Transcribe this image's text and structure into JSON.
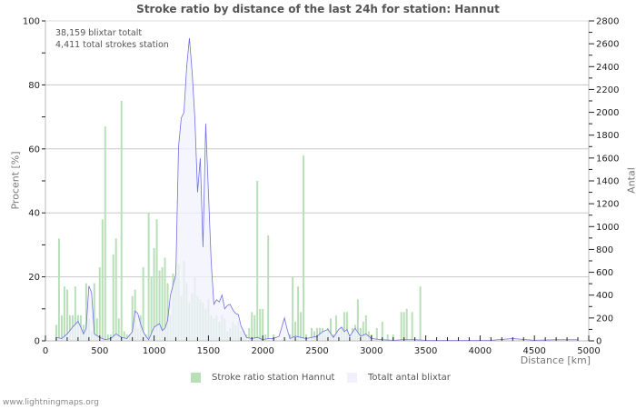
{
  "title": "Stroke ratio by distance of the last 24h for station: Hannut",
  "annotation": {
    "line1": "38,159 blixtar totalt",
    "line2": "4,411 total strokes station"
  },
  "axes": {
    "left_label": "Procent   [%]",
    "right_label": "Antal",
    "x_label": "Distance   [km]"
  },
  "legend": {
    "ratio_label": "Stroke ratio station Hannut",
    "total_label": "Totalt antal blixtar"
  },
  "footer": "www.lightningmaps.org",
  "colors": {
    "bar": "#b8e0b8",
    "line": "#6f6fe6",
    "fill": "#f1f1fd",
    "grid": "#c8c8c8"
  },
  "chart_data": {
    "type": "bar",
    "title": "Stroke ratio by distance of the last 24h for station: Hannut",
    "xlabel": "Distance [km]",
    "ylabel": "Procent [%]",
    "y2label": "Antal",
    "xlim": [
      0,
      5000
    ],
    "ylim": [
      0,
      100
    ],
    "y2lim": [
      0,
      2800
    ],
    "xticks": [
      0,
      500,
      1000,
      1500,
      2000,
      2500,
      3000,
      3500,
      4000,
      4500,
      5000
    ],
    "yticks": [
      0,
      20,
      40,
      60,
      80,
      100
    ],
    "y2ticks": [
      0,
      200,
      400,
      600,
      800,
      1000,
      1200,
      1400,
      1600,
      1800,
      2000,
      2200,
      2400,
      2600,
      2800
    ],
    "grid": true,
    "bin_km": 25,
    "series": [
      {
        "name": "Stroke ratio station Hannut",
        "type": "bar",
        "axis": "left",
        "x": [
          100,
          125,
          150,
          175,
          200,
          225,
          250,
          275,
          300,
          325,
          350,
          375,
          400,
          425,
          450,
          475,
          500,
          525,
          550,
          575,
          600,
          625,
          650,
          675,
          700,
          725,
          750,
          775,
          800,
          825,
          850,
          875,
          900,
          925,
          950,
          975,
          1000,
          1025,
          1050,
          1075,
          1100,
          1125,
          1150,
          1175,
          1200,
          1225,
          1250,
          1275,
          1300,
          1325,
          1350,
          1375,
          1400,
          1425,
          1450,
          1475,
          1500,
          1525,
          1550,
          1575,
          1600,
          1625,
          1650,
          1675,
          1700,
          1725,
          1750,
          1775,
          1800,
          1825,
          1850,
          1875,
          1900,
          1925,
          1950,
          1975,
          2000,
          2025,
          2050,
          2100,
          2250,
          2275,
          2300,
          2325,
          2350,
          2375,
          2400,
          2450,
          2475,
          2500,
          2525,
          2550,
          2575,
          2600,
          2625,
          2650,
          2675,
          2700,
          2725,
          2750,
          2775,
          2800,
          2825,
          2850,
          2875,
          2900,
          2925,
          2950,
          2975,
          3000,
          3050,
          3100,
          3150,
          3200,
          3275,
          3300,
          3325,
          3375,
          3450
        ],
        "values": [
          5,
          32,
          8,
          17,
          16,
          8,
          8,
          17,
          8,
          8,
          5,
          18,
          7,
          3,
          18,
          7,
          23,
          38,
          67,
          2,
          2,
          27,
          32,
          7,
          75,
          3,
          2,
          2,
          14,
          16,
          4,
          8,
          23,
          2,
          40,
          20,
          29,
          38,
          22,
          23,
          26,
          18,
          8,
          21,
          20,
          24,
          14,
          25,
          18,
          12,
          15,
          20,
          14,
          13,
          12,
          10,
          13,
          8,
          7,
          8,
          6,
          8,
          7,
          3,
          4,
          6,
          5,
          6,
          3,
          3,
          2,
          4,
          9,
          8,
          50,
          10,
          10,
          2,
          33,
          2,
          2,
          20,
          6,
          17,
          9,
          58,
          2,
          4,
          3,
          4,
          4,
          4,
          2,
          4,
          7,
          2,
          8,
          2,
          4,
          9,
          9,
          2,
          4,
          5,
          13,
          4,
          6,
          8,
          3,
          2,
          4,
          6,
          2,
          2,
          9,
          9,
          10,
          9,
          17
        ]
      },
      {
        "name": "Totalt antal blixtar",
        "type": "area",
        "axis": "right",
        "x": [
          100,
          150,
          200,
          250,
          300,
          325,
          350,
          375,
          400,
          425,
          450,
          500,
          550,
          600,
          650,
          700,
          750,
          800,
          825,
          850,
          875,
          900,
          925,
          950,
          1000,
          1050,
          1075,
          1100,
          1125,
          1150,
          1200,
          1225,
          1250,
          1275,
          1300,
          1325,
          1350,
          1375,
          1400,
          1425,
          1450,
          1475,
          1500,
          1525,
          1550,
          1575,
          1600,
          1625,
          1650,
          1675,
          1700,
          1725,
          1750,
          1775,
          1800,
          1850,
          1900,
          1950,
          2000,
          2050,
          2100,
          2150,
          2175,
          2200,
          2225,
          2250,
          2300,
          2400,
          2500,
          2550,
          2600,
          2650,
          2700,
          2725,
          2750,
          2775,
          2800,
          2850,
          2900,
          2950,
          3000,
          3100,
          3200,
          3300,
          3400,
          3500,
          3700,
          3900,
          4100,
          4300,
          4500,
          4700,
          4900
        ],
        "values": [
          30,
          20,
          60,
          120,
          170,
          120,
          60,
          110,
          480,
          420,
          60,
          30,
          10,
          20,
          60,
          30,
          20,
          80,
          260,
          240,
          150,
          80,
          40,
          10,
          120,
          150,
          90,
          110,
          180,
          400,
          580,
          1700,
          1950,
          2000,
          2400,
          2650,
          2350,
          1950,
          1300,
          1600,
          820,
          1900,
          1300,
          700,
          320,
          360,
          340,
          400,
          280,
          310,
          320,
          270,
          240,
          230,
          130,
          30,
          20,
          30,
          10,
          20,
          20,
          40,
          120,
          200,
          100,
          20,
          40,
          20,
          40,
          80,
          100,
          30,
          100,
          120,
          80,
          100,
          40,
          110,
          40,
          60,
          20,
          10,
          5,
          10,
          10,
          5,
          5,
          5,
          5,
          20,
          5,
          10,
          10
        ]
      }
    ],
    "legend_position": "bottom"
  }
}
